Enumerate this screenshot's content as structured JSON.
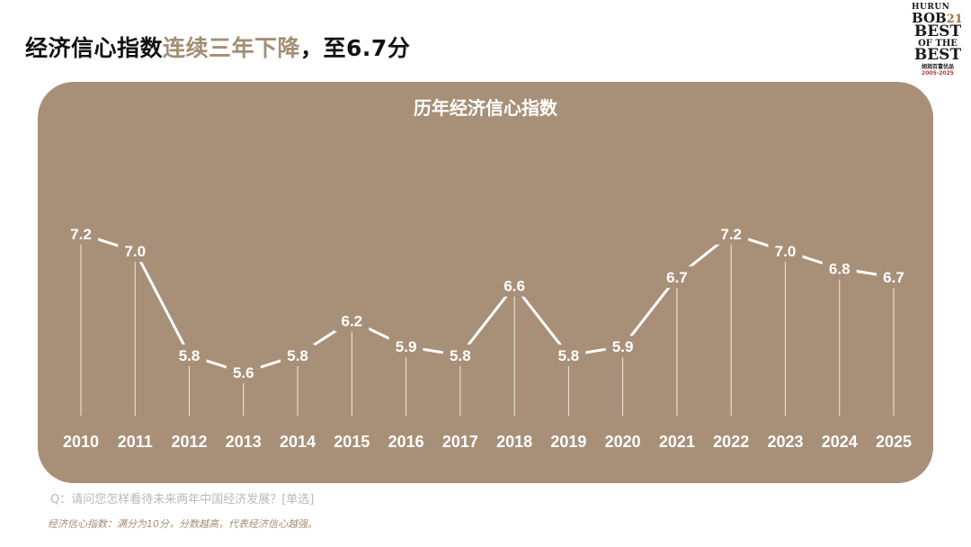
{
  "page": {
    "title_part1": "经济信心指数",
    "title_part2": "连续三年下降",
    "title_part3": "，至6.7分"
  },
  "logo": {
    "line1": "HURUN",
    "line2": "BOB",
    "line2_num": "21",
    "line3": "BEST",
    "line4": "OF THE",
    "line5": "BEST",
    "line6": "胡润百富优品",
    "line7": "2005-2025"
  },
  "chart_data": {
    "type": "line",
    "title": "历年经济信心指数",
    "categories": [
      "2010",
      "2011",
      "2012",
      "2013",
      "2014",
      "2015",
      "2016",
      "2017",
      "2018",
      "2019",
      "2020",
      "2021",
      "2022",
      "2023",
      "2024",
      "2025"
    ],
    "values": [
      7.2,
      7.0,
      5.8,
      5.6,
      5.8,
      6.2,
      5.9,
      5.8,
      6.6,
      5.8,
      5.9,
      6.7,
      7.2,
      7.0,
      6.8,
      6.7
    ],
    "data_labels": [
      "7.2",
      "7.0",
      "5.8",
      "5.6",
      "5.8",
      "6.2",
      "5.9",
      "5.8",
      "6.6",
      "5.8",
      "5.9",
      "6.7",
      "7.2",
      "7.0",
      "6.8",
      "6.7"
    ],
    "xlabel": "",
    "ylabel": "",
    "ylim": [
      5.0,
      7.8
    ],
    "grid": false,
    "colors": {
      "background": "#a89078",
      "line": "#ffffff",
      "text": "#ffffff"
    }
  },
  "footnotes": {
    "question": "Q：请问您怎样看待未来两年中国经济发展？[单选]",
    "definition": "经济信心指数：满分为10分，分数越高，代表经济信心越强。"
  }
}
